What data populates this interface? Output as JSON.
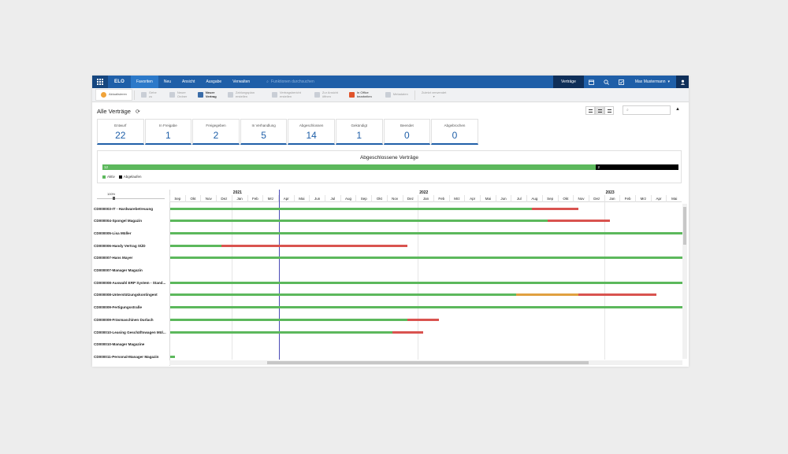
{
  "nav": {
    "logo": "ELO",
    "tabs": [
      {
        "label": "Favoriten",
        "active": true
      },
      {
        "label": "Neu",
        "active": false
      },
      {
        "label": "Ansicht",
        "active": false
      },
      {
        "label": "Ausgabe",
        "active": false
      },
      {
        "label": "Verwalten",
        "active": false
      }
    ],
    "search_placeholder": "Funktionen durchsuchen",
    "context": "Verträge",
    "user": "Max Mustermann"
  },
  "ribbon": {
    "items": [
      {
        "label": "Aktualisieren",
        "state": "normal"
      },
      {
        "label": "Gehe zu",
        "state": "disabled"
      },
      {
        "label": "Neuer Ordner",
        "state": "disabled"
      },
      {
        "label": "Neuer Vertrag",
        "state": "active"
      },
      {
        "label": "Zahlungsplan erstellen",
        "state": "disabled"
      },
      {
        "label": "Vertragsbericht erstellen",
        "state": "disabled"
      },
      {
        "label": "Zur Ansicht öffnen",
        "state": "disabled"
      },
      {
        "label": "In Office bearbeiten",
        "state": "office"
      },
      {
        "label": "Metadaten",
        "state": "disabled"
      },
      {
        "label": "Zuletzt verwendet",
        "state": "disabled"
      }
    ]
  },
  "page": {
    "title": "Alle Verträge"
  },
  "status_tiles": [
    {
      "label": "Entwurf",
      "value": "22"
    },
    {
      "label": "In Freigabe",
      "value": "1"
    },
    {
      "label": "Freigegeben",
      "value": "2"
    },
    {
      "label": "In Verhandlung",
      "value": "5"
    },
    {
      "label": "Abgeschlossen",
      "value": "14"
    },
    {
      "label": "Gekündigt",
      "value": "1"
    },
    {
      "label": "Beendet",
      "value": "0"
    },
    {
      "label": "Abgebrochen",
      "value": "0"
    }
  ],
  "summary": {
    "title": "Abgeschlossene Verträge",
    "active_count": "12",
    "expired_count": "2",
    "active_fraction": 0.857,
    "legend": [
      {
        "label": "Aktiv",
        "color": "#5cb85c"
      },
      {
        "label": "Abgelaufen",
        "color": "#000000"
      }
    ]
  },
  "gantt": {
    "zoom": "100%",
    "years": [
      {
        "label": "2021",
        "start_month": 4
      },
      {
        "label": "2022",
        "start_month": 16
      },
      {
        "label": "2023",
        "start_month": 28
      }
    ],
    "months": [
      "Sep",
      "Okt",
      "Nov",
      "Dez",
      "Jan",
      "Feb",
      "Mrz",
      "Apr",
      "Mai",
      "Jun",
      "Jul",
      "Aug",
      "Sep",
      "Okt",
      "Nov",
      "Dez",
      "Jan",
      "Feb",
      "Mrz",
      "Apr",
      "Mai",
      "Jun",
      "Jul",
      "Aug",
      "Sep",
      "Okt",
      "Nov",
      "Dez",
      "Jan",
      "Feb",
      "Mrz",
      "Apr",
      "Mai"
    ],
    "today_month": 7.05,
    "colors": {
      "active": "#5cb85c",
      "ending": "#d9534f",
      "warning": "#e0a040"
    },
    "rows": [
      {
        "label": "CD000003-IT - Hardwarebetreuung",
        "segments": [
          {
            "from": 0,
            "to": 23.3,
            "kind": "active"
          },
          {
            "from": 23.3,
            "to": 26.3,
            "kind": "ending"
          }
        ]
      },
      {
        "label": "CD000004-Spongel Magazin",
        "segments": [
          {
            "from": 0,
            "to": 24.3,
            "kind": "active"
          },
          {
            "from": 24.3,
            "to": 28.3,
            "kind": "ending"
          }
        ]
      },
      {
        "label": "CD000005-Lisa Müller",
        "segments": [
          {
            "from": 0,
            "to": 33.3,
            "kind": "active"
          }
        ]
      },
      {
        "label": "CD000006-Handy Vertrag SÜD",
        "segments": [
          {
            "from": 0,
            "to": 3.3,
            "kind": "active"
          },
          {
            "from": 3.3,
            "to": 15.3,
            "kind": "ending"
          }
        ]
      },
      {
        "label": "CD000007-Hans Mayer",
        "segments": [
          {
            "from": 0,
            "to": 33.3,
            "kind": "active"
          }
        ]
      },
      {
        "label": "CD000007-Manager Magazin",
        "segments": []
      },
      {
        "label": "CD000008-Auswahl ERP System - Stand...",
        "segments": [
          {
            "from": 0,
            "to": 33.3,
            "kind": "active"
          }
        ]
      },
      {
        "label": "CD000008-Unterstützungskontingent",
        "segments": [
          {
            "from": 0,
            "to": 22.3,
            "kind": "active"
          },
          {
            "from": 22.3,
            "to": 26.3,
            "kind": "warning"
          },
          {
            "from": 26.3,
            "to": 31.3,
            "kind": "ending"
          }
        ]
      },
      {
        "label": "CD000009-Fertigungsstraße",
        "segments": [
          {
            "from": 0,
            "to": 33.3,
            "kind": "active"
          }
        ]
      },
      {
        "label": "CD000009-Fräsmaschinen Durlach",
        "segments": [
          {
            "from": 0,
            "to": 15.3,
            "kind": "active"
          },
          {
            "from": 15.3,
            "to": 17.3,
            "kind": "ending"
          }
        ]
      },
      {
        "label": "CD000010-Leasing Geschäftswagen Mül...",
        "segments": [
          {
            "from": 0,
            "to": 14.3,
            "kind": "active"
          },
          {
            "from": 14.3,
            "to": 16.3,
            "kind": "ending"
          }
        ]
      },
      {
        "label": "CD000010-Manager Magazine",
        "segments": []
      },
      {
        "label": "CD000011-Personal-Manager Magazin",
        "segments": [
          {
            "from": 0,
            "to": 0.3,
            "kind": "active"
          }
        ]
      }
    ]
  }
}
